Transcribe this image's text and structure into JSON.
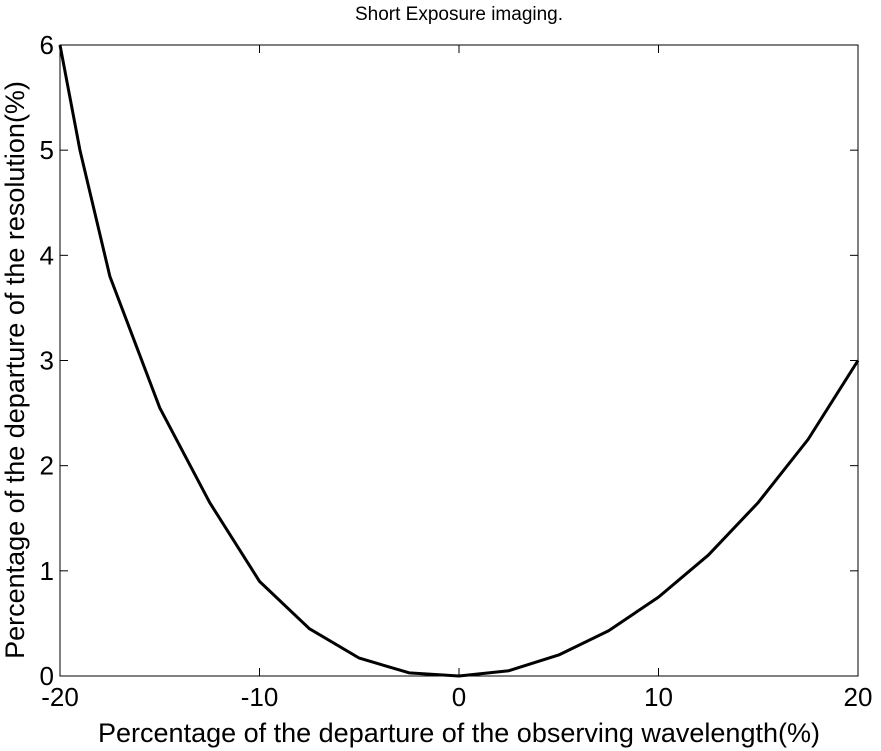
{
  "chart_data": {
    "type": "line",
    "title": "Short Exposure imaging.",
    "x_label": "Percentage of the departure of the observing wavelength(%)",
    "y_label": "Percentage of the departure of the resolution(%)",
    "x": [
      -20,
      -19,
      -17.5,
      -15,
      -12.5,
      -10,
      -7.5,
      -5,
      -2.5,
      0,
      2.5,
      5,
      7.5,
      10,
      12.5,
      15,
      17.5,
      20
    ],
    "series": [
      {
        "color": "#000000",
        "values": [
          6,
          5,
          3.8,
          2.55,
          1.65,
          0.9,
          0.45,
          0.17,
          0.03,
          0,
          0.05,
          0.2,
          0.43,
          0.75,
          1.15,
          1.65,
          2.25,
          3
        ]
      }
    ],
    "xlim": [
      -20,
      20
    ],
    "xticks": [
      -20,
      -10,
      0,
      10,
      20
    ],
    "ylim": [
      0,
      6
    ],
    "yticks": [
      0,
      1,
      2,
      3,
      4,
      5,
      6
    ],
    "grid": false
  }
}
